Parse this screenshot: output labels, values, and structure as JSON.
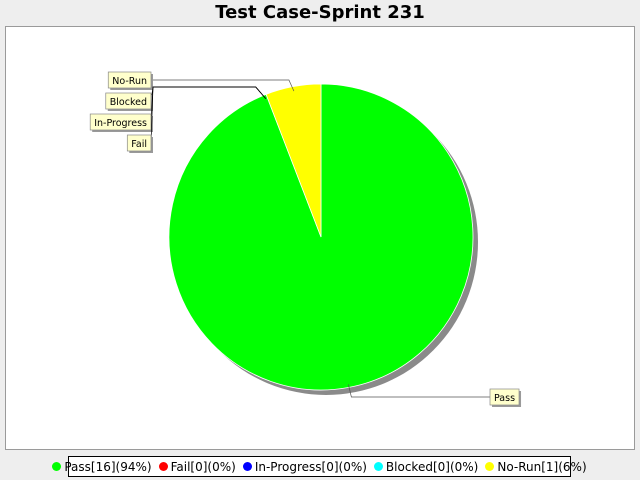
{
  "chart_data": {
    "type": "pie",
    "title": "Test Case-Sprint 231",
    "slices": [
      {
        "label": "Pass",
        "value": 16,
        "percent": 94,
        "color": "#00ff00",
        "legend": "Pass[16](94%)"
      },
      {
        "label": "Fail",
        "value": 0,
        "percent": 0,
        "color": "#ff0000",
        "legend": "Fail[0](0%)"
      },
      {
        "label": "In-Progress",
        "value": 0,
        "percent": 0,
        "color": "#0000ff",
        "legend": "In-Progress[0](0%)"
      },
      {
        "label": "Blocked",
        "value": 0,
        "percent": 0,
        "color": "#00ffff",
        "legend": "Blocked[0](0%)"
      },
      {
        "label": "No-Run",
        "value": 1,
        "percent": 6,
        "color": "#ffff00",
        "legend": "No-Run[1](6%)"
      }
    ],
    "legend_position": "bottom"
  }
}
